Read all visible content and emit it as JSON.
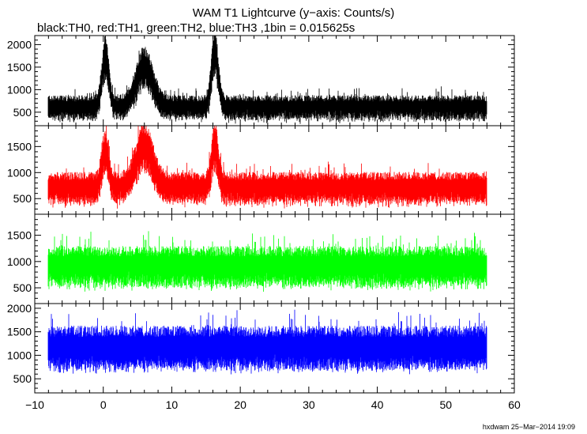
{
  "chart_data": {
    "type": "line",
    "title": "WAM T1 Lightcurve (y−axis: Counts/s)",
    "subtitle": "black:TH0, red:TH1, green:TH2, blue:TH3 ,1bin = 0.015625s",
    "footer": "hxdwam 25−Mar−2014 19:09",
    "xlim": [
      -10,
      60
    ],
    "x_ticks": [
      -10,
      0,
      10,
      20,
      30,
      40,
      50,
      60
    ],
    "x_tick_labels": [
      "−10",
      "0",
      "10",
      "20",
      "30",
      "40",
      "50",
      "60"
    ],
    "x_data_range": [
      -8,
      56
    ],
    "grid": false,
    "panels": [
      {
        "name": "TH0",
        "color": "#000000",
        "ylim": [
          200,
          2200
        ],
        "y_ticks": [
          500,
          1000,
          1500,
          2000
        ],
        "y_tick_labels": [
          "500",
          "1000",
          "1500",
          "2000"
        ],
        "baseline_mean": 600,
        "noise_spread": 230,
        "peaks": [
          {
            "x": 0.3,
            "amplitude": 1100,
            "width": 0.5
          },
          {
            "x": 6.0,
            "amplitude": 900,
            "width": 1.2
          },
          {
            "x": 16.3,
            "amplitude": 1200,
            "width": 0.5
          }
        ]
      },
      {
        "name": "TH1",
        "color": "#ff0000",
        "ylim": [
          200,
          1900
        ],
        "y_ticks": [
          500,
          1000,
          1500
        ],
        "y_tick_labels": [
          "500",
          "1000",
          "1500"
        ],
        "baseline_mean": 700,
        "noise_spread": 260,
        "peaks": [
          {
            "x": 0.3,
            "amplitude": 700,
            "width": 0.5
          },
          {
            "x": 6.0,
            "amplitude": 800,
            "width": 1.2
          },
          {
            "x": 16.3,
            "amplitude": 800,
            "width": 0.5
          }
        ]
      },
      {
        "name": "TH2",
        "color": "#00ff00",
        "ylim": [
          200,
          1900
        ],
        "y_ticks": [
          500,
          1000,
          1500
        ],
        "y_tick_labels": [
          "500",
          "1000",
          "1500"
        ],
        "baseline_mean": 900,
        "noise_spread": 330,
        "peaks": []
      },
      {
        "name": "TH3",
        "color": "#0000ff",
        "ylim": [
          200,
          2100
        ],
        "y_ticks": [
          500,
          1000,
          1500,
          2000
        ],
        "y_tick_labels": [
          "500",
          "1000",
          "1500",
          "2000"
        ],
        "baseline_mean": 1150,
        "noise_spread": 400,
        "peaks": []
      }
    ]
  }
}
